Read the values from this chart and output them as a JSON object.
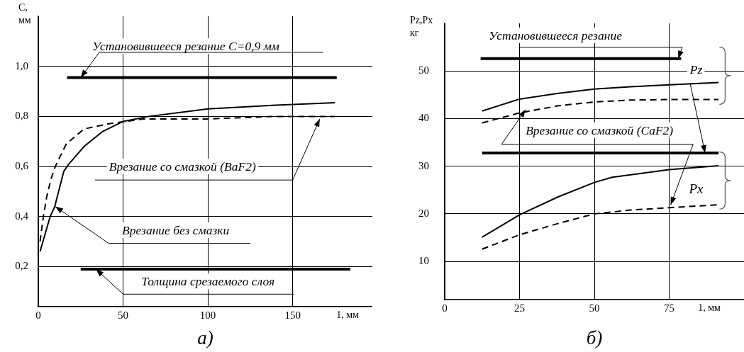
{
  "chart_data": [
    {
      "type": "line",
      "title": "a)",
      "xlabel": "1, мм",
      "ylabel": "С, мм",
      "xlim": [
        0,
        197
      ],
      "ylim": [
        0.04,
        1.2
      ],
      "xticks": [
        0,
        50,
        100,
        150
      ],
      "yticks": [
        {
          "value": 0.2,
          "label": "0,2"
        },
        {
          "value": 0.4,
          "label": "0,4"
        },
        {
          "value": 0.6,
          "label": "0,6"
        },
        {
          "value": 0.8,
          "label": "0,8"
        },
        {
          "value": 1.0,
          "label": "1,0"
        }
      ],
      "grid": true,
      "marker": "none",
      "series": [
        {
          "color": "#000000",
          "line_style": "solid",
          "x": [
            1,
            4,
            7,
            9.7,
            15,
            18,
            27,
            38,
            50,
            65,
            100,
            140,
            175
          ],
          "values": [
            0.26,
            0.33,
            0.4,
            0.44,
            0.58,
            0.61,
            0.68,
            0.74,
            0.78,
            0.8,
            0.83,
            0.845,
            0.855
          ]
        },
        {
          "color": "#000000",
          "line_style": "dashed",
          "x": [
            1,
            3,
            5,
            7.5,
            10,
            16.5,
            27,
            41,
            62,
            100,
            140,
            175
          ],
          "values": [
            0.3,
            0.4,
            0.48,
            0.55,
            0.6,
            0.69,
            0.75,
            0.77,
            0.79,
            0.79,
            0.8,
            0.8
          ]
        },
        {
          "color": "#000000",
          "line_style": "solid",
          "x": [
            17,
            176
          ],
          "values": [
            0.955,
            0.955
          ]
        },
        {
          "color": "#000000",
          "line_style": "solid",
          "x": [
            25,
            184
          ],
          "values": [
            0.19,
            0.19
          ]
        }
      ],
      "annotations": [
        {
          "text": "Установившееся резание С=0,9 мм",
          "x": 25,
          "y": 0.955
        },
        {
          "text": "Врезание со смазкой (BaF2)",
          "x": 166,
          "y": 0.79
        },
        {
          "text": "Врезание без смазки",
          "x": 10,
          "y": 0.44
        },
        {
          "text": "Толщина срезаемого слоя",
          "x": 34,
          "y": 0.19
        }
      ]
    },
    {
      "type": "line",
      "title": "б)",
      "xlabel": "1, мм",
      "ylabel": "Pz,Px кг",
      "xlim": [
        0,
        100
      ],
      "ylim": [
        2,
        60
      ],
      "xticks": [
        0,
        25,
        50,
        75
      ],
      "yticks": [
        10,
        20,
        30,
        40,
        50
      ],
      "grid": true,
      "marker": "none",
      "series": [
        {
          "color": "#000000",
          "line_style": "solid",
          "x": [
            12.5,
            25,
            38,
            50,
            62,
            75,
            91.5
          ],
          "values": [
            41.6,
            44.1,
            45.3,
            46.2,
            46.7,
            47.1,
            47.6
          ]
        },
        {
          "color": "#000000",
          "line_style": "dashed",
          "x": [
            12.5,
            25,
            38,
            50,
            62,
            75,
            91.5
          ],
          "values": [
            39.1,
            41.2,
            42.7,
            43.5,
            43.9,
            44.0,
            44.0
          ]
        },
        {
          "color": "#000000",
          "line_style": "solid",
          "x": [
            12.5,
            25,
            38,
            50,
            56,
            75,
            91.5
          ],
          "values": [
            15.1,
            19.8,
            23.6,
            26.6,
            27.7,
            29.3,
            30.1
          ]
        },
        {
          "color": "#000000",
          "line_style": "dashed",
          "x": [
            12.5,
            25,
            38,
            50,
            62,
            75,
            91.5
          ],
          "values": [
            12.6,
            15.6,
            18.0,
            20.0,
            20.8,
            21.3,
            21.9
          ]
        },
        {
          "color": "#000000",
          "line_style": "solid",
          "x": [
            12,
            79
          ],
          "values": [
            52.6,
            52.6
          ]
        },
        {
          "color": "#000000",
          "line_style": "solid",
          "x": [
            12.5,
            91.5
          ],
          "values": [
            32.8,
            32.8
          ]
        }
      ],
      "annotations": [
        {
          "text": "Установившееся резание",
          "x": 78,
          "y": 52.6
        },
        {
          "text": "Врезание со смазкой (CaF2)",
          "x": 27,
          "y": 41.9
        },
        {
          "text": "Pz",
          "x": 87,
          "y": 32.8
        },
        "Px"
      ]
    }
  ]
}
